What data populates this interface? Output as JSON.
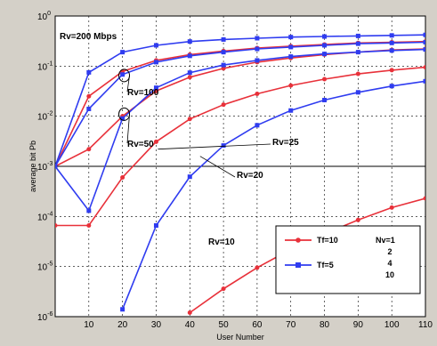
{
  "chart_data": {
    "type": "line",
    "title": "",
    "xlabel": "User Number",
    "ylabel": "average bit Pb",
    "x": [
      0,
      10,
      20,
      30,
      40,
      50,
      60,
      70,
      80,
      90,
      100,
      110
    ],
    "xlim": [
      0,
      110
    ],
    "ylim": [
      1e-06,
      1
    ],
    "y_scale": "log",
    "x_ticks": [
      "10",
      "20",
      "30",
      "40",
      "50",
      "60",
      "70",
      "80",
      "90",
      "100",
      "110"
    ],
    "y_tick_exponents": [
      "-6",
      "-5",
      "-4",
      "-3",
      "-2",
      "-1",
      "0"
    ],
    "grid": true,
    "legend_position": "bottom-right",
    "colors": {
      "red": "#e8313a",
      "blue": "#2f3cf0",
      "plot_bg": "#ffffff",
      "frame_bg": "#d4d0c8"
    },
    "series": [
      {
        "group": "Tf=10",
        "color": "#e8313a",
        "rate": "Rv=200 Mbps",
        "x": [
          0,
          10,
          20,
          30,
          40,
          50,
          60,
          70,
          80,
          90,
          100,
          110
        ],
        "y": [
          0.001,
          0.025,
          0.078,
          0.13,
          0.17,
          0.2,
          0.23,
          0.25,
          0.27,
          0.29,
          0.3,
          0.31
        ]
      },
      {
        "group": "Tf=5",
        "color": "#2f3cf0",
        "rate": "Rv=200 Mbps",
        "x": [
          0,
          10,
          20,
          30,
          40,
          50,
          60,
          70,
          80,
          90,
          100,
          110
        ],
        "y": [
          0.001,
          0.075,
          0.19,
          0.26,
          0.31,
          0.34,
          0.36,
          0.38,
          0.39,
          0.4,
          0.41,
          0.42
        ]
      },
      {
        "group": "Tf=10",
        "color": "#e8313a",
        "rate": "Rv=100",
        "x": [
          0,
          10,
          20,
          30,
          40,
          50,
          60,
          70,
          80,
          90,
          100,
          110
        ],
        "y": [
          0.001,
          0.0022,
          0.01,
          0.032,
          0.06,
          0.09,
          0.12,
          0.145,
          0.17,
          0.19,
          0.21,
          0.22
        ]
      },
      {
        "group": "Tf=5",
        "color": "#2f3cf0",
        "rate": "Rv=100",
        "x": [
          0,
          10,
          20,
          30,
          40,
          50,
          60,
          70,
          80,
          90,
          100,
          110
        ],
        "y": [
          0.001,
          0.014,
          0.068,
          0.12,
          0.16,
          0.19,
          0.22,
          0.24,
          0.26,
          0.28,
          0.29,
          0.3
        ]
      },
      {
        "group": "Tf=10",
        "color": "#e8313a",
        "rate": "Rv=50",
        "x": [
          0,
          10,
          20,
          30,
          40,
          50,
          60,
          70,
          80,
          90,
          100,
          110
        ],
        "y": [
          6.6e-05,
          6.6e-05,
          0.0006,
          0.0031,
          0.0088,
          0.017,
          0.028,
          0.041,
          0.055,
          0.07,
          0.083,
          0.095
        ]
      },
      {
        "group": "Tf=5",
        "color": "#2f3cf0",
        "rate": "Rv=50",
        "x": [
          0,
          10,
          20,
          30,
          40,
          50,
          60,
          70,
          80,
          90,
          100,
          110
        ],
        "y": [
          0.001,
          0.00013,
          0.009,
          0.037,
          0.074,
          0.105,
          0.13,
          0.155,
          0.175,
          0.19,
          0.205,
          0.215
        ]
      },
      {
        "group": "Tf=10",
        "color": "#e8313a",
        "rate": "Rv=10",
        "x": [
          40,
          50,
          60,
          70,
          80,
          90,
          100,
          110
        ],
        "y": [
          1.2e-06,
          3.6e-06,
          9.5e-06,
          2.2e-05,
          4.5e-05,
          8.5e-05,
          0.00015,
          0.00023
        ]
      },
      {
        "group": "Tf=5",
        "color": "#2f3cf0",
        "rate": "Rv=20",
        "x": [
          20,
          30,
          40,
          50,
          60,
          70,
          80,
          90,
          100,
          110
        ],
        "y": [
          1.4e-06,
          6.6e-05,
          0.00062,
          0.0026,
          0.0066,
          0.013,
          0.021,
          0.03,
          0.04,
          0.05
        ]
      }
    ],
    "annotations": [
      {
        "text": "Rv=200 Mbps",
        "x": 19,
        "y": 0.17
      },
      {
        "text": "Rv=100",
        "x": 21,
        "y": 0.06
      },
      {
        "text": "Rv=50",
        "x": 21,
        "y": 0.011
      },
      {
        "text": "Rv=25",
        "x": 30,
        "y": 0.0022
      },
      {
        "text": "Rv=20",
        "x": 42,
        "y": 0.0022
      },
      {
        "text": "Rv=10",
        "x": 44,
        "y": 0.00011
      }
    ],
    "legend": {
      "entries": [
        {
          "label": "Tf=10",
          "color": "#e8313a"
        },
        {
          "label": "Tf=5",
          "color": "#2f3cf0"
        }
      ],
      "values_title": "Nv=1",
      "values": [
        "2",
        "4",
        "10"
      ]
    }
  }
}
